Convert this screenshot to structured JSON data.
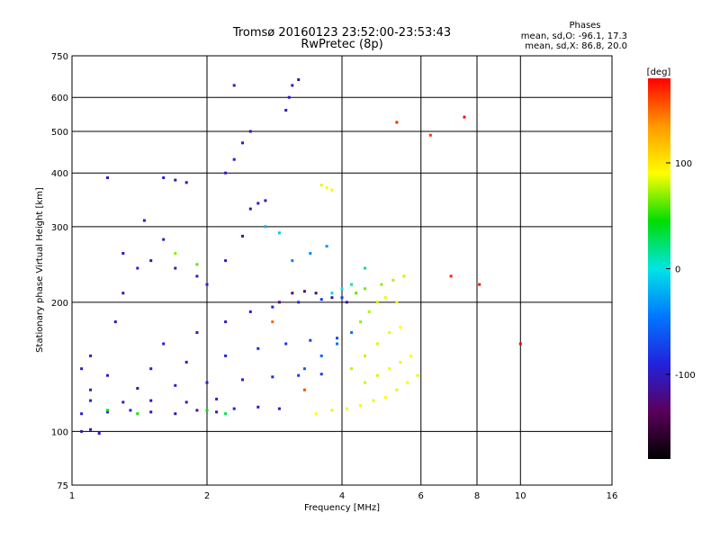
{
  "header": {
    "title_line1": "Tromsø 20160123 23:52:00-23:53:43",
    "title_line2": "RwPretec (8p)"
  },
  "stats": {
    "heading": "Phases",
    "line_o": "mean, sd,O: -96.1, 17.3",
    "line_x": "mean, sd,X:  86.8, 20.0"
  },
  "chart_data": {
    "type": "scatter",
    "title": "Tromsø 20160123 23:52:00-23:53:43",
    "subtitle": "RwPretec (8p)",
    "xlabel": "Frequency [MHz]",
    "ylabel": "Stationary phase Virtual Height [km]",
    "x_scale": "log",
    "y_scale": "log",
    "xlim": [
      1,
      16
    ],
    "ylim": [
      75,
      750
    ],
    "x_ticks": [
      1,
      2,
      4,
      6,
      8,
      10,
      16
    ],
    "y_ticks": [
      75,
      100,
      200,
      300,
      400,
      500,
      600,
      750
    ],
    "grid": true,
    "colorbar": {
      "label": "[deg]",
      "range": [
        -180,
        180
      ],
      "ticks": [
        100,
        0,
        -100
      ],
      "colormap": [
        "#000000",
        "#5a005a",
        "#2222dd",
        "#0077ff",
        "#00e5e5",
        "#00dd00",
        "#ffff00",
        "#ff9900",
        "#ff0000"
      ]
    },
    "series": [
      {
        "points": [
          [
            1.05,
            100,
            -105
          ],
          [
            1.1,
            101,
            -110
          ],
          [
            1.15,
            99,
            -100
          ],
          [
            1.05,
            110,
            -95
          ],
          [
            1.2,
            111,
            -105
          ],
          [
            1.35,
            112,
            -90
          ],
          [
            1.5,
            111,
            -100
          ],
          [
            1.7,
            110,
            -105
          ],
          [
            1.9,
            112,
            -110
          ],
          [
            2.1,
            111,
            -100
          ],
          [
            2.3,
            113,
            -95
          ],
          [
            2.6,
            114,
            -100
          ],
          [
            2.9,
            113,
            -105
          ],
          [
            1.1,
            118,
            -100
          ],
          [
            1.3,
            117,
            -95
          ],
          [
            1.5,
            118,
            -110
          ],
          [
            1.8,
            117,
            -100
          ],
          [
            2.1,
            119,
            -90
          ],
          [
            1.1,
            125,
            -100
          ],
          [
            1.4,
            126,
            -105
          ],
          [
            1.7,
            128,
            -95
          ],
          [
            2.0,
            130,
            -100
          ],
          [
            2.4,
            132,
            -90
          ],
          [
            2.8,
            134,
            -85
          ],
          [
            3.2,
            135,
            -80
          ],
          [
            3.6,
            136,
            -75
          ],
          [
            1.2,
            135,
            -100
          ],
          [
            1.5,
            140,
            -95
          ],
          [
            1.8,
            145,
            -100
          ],
          [
            2.2,
            150,
            -90
          ],
          [
            2.6,
            156,
            -85
          ],
          [
            3.0,
            160,
            -80
          ],
          [
            3.4,
            163,
            -75
          ],
          [
            3.9,
            165,
            -70
          ],
          [
            1.6,
            160,
            -100
          ],
          [
            1.9,
            170,
            -95
          ],
          [
            2.2,
            180,
            -100
          ],
          [
            2.5,
            190,
            -95
          ],
          [
            2.8,
            195,
            -90
          ],
          [
            3.2,
            200,
            -85
          ],
          [
            3.6,
            203,
            -80
          ],
          [
            4.0,
            205,
            -75
          ],
          [
            1.3,
            260,
            -100
          ],
          [
            1.5,
            250,
            -105
          ],
          [
            1.7,
            240,
            -95
          ],
          [
            1.9,
            230,
            -100
          ],
          [
            2.0,
            220,
            -95
          ],
          [
            2.2,
            250,
            -100
          ],
          [
            2.4,
            285,
            -105
          ],
          [
            2.5,
            330,
            -110
          ],
          [
            2.6,
            340,
            -100
          ],
          [
            2.7,
            345,
            -105
          ],
          [
            1.6,
            390,
            -95
          ],
          [
            1.7,
            385,
            -100
          ],
          [
            1.8,
            380,
            -105
          ],
          [
            2.2,
            400,
            -100
          ],
          [
            2.3,
            430,
            -95
          ],
          [
            2.4,
            470,
            -100
          ],
          [
            2.5,
            500,
            -105
          ],
          [
            2.3,
            640,
            -100
          ],
          [
            3.0,
            560,
            -95
          ],
          [
            3.1,
            640,
            -100
          ],
          [
            3.2,
            660,
            -105
          ],
          [
            3.05,
            600,
            -100
          ],
          [
            1.2,
            390,
            -100
          ],
          [
            1.05,
            140,
            -100
          ],
          [
            1.1,
            150,
            -95
          ],
          [
            1.3,
            210,
            -100
          ],
          [
            1.4,
            240,
            -95
          ],
          [
            1.25,
            180,
            -105
          ],
          [
            1.45,
            310,
            -100
          ],
          [
            1.6,
            280,
            -95
          ],
          [
            2.9,
            200,
            -130
          ],
          [
            3.1,
            210,
            -135
          ],
          [
            3.3,
            212,
            -120
          ],
          [
            3.5,
            210,
            -125
          ],
          [
            3.8,
            205,
            -115
          ],
          [
            4.1,
            200,
            -110
          ]
        ]
      },
      {
        "points": [
          [
            3.5,
            110,
            90
          ],
          [
            3.8,
            112,
            85
          ],
          [
            4.1,
            113,
            88
          ],
          [
            4.4,
            115,
            92
          ],
          [
            4.7,
            118,
            86
          ],
          [
            5.0,
            120,
            90
          ],
          [
            5.3,
            125,
            84
          ],
          [
            5.6,
            130,
            88
          ],
          [
            5.9,
            135,
            85
          ],
          [
            4.5,
            130,
            80
          ],
          [
            4.8,
            135,
            82
          ],
          [
            5.1,
            140,
            88
          ],
          [
            5.4,
            145,
            86
          ],
          [
            5.7,
            150,
            90
          ],
          [
            4.2,
            140,
            78
          ],
          [
            4.5,
            150,
            80
          ],
          [
            4.8,
            160,
            84
          ],
          [
            5.1,
            170,
            86
          ],
          [
            5.4,
            175,
            90
          ],
          [
            4.4,
            180,
            70
          ],
          [
            4.6,
            190,
            75
          ],
          [
            4.8,
            200,
            80
          ],
          [
            5.0,
            205,
            85
          ],
          [
            5.3,
            200,
            88
          ],
          [
            4.3,
            210,
            60
          ],
          [
            4.5,
            215,
            65
          ],
          [
            4.9,
            220,
            70
          ],
          [
            5.2,
            225,
            75
          ],
          [
            5.5,
            230,
            80
          ],
          [
            3.7,
            370,
            90
          ],
          [
            3.8,
            365,
            95
          ],
          [
            3.6,
            375,
            85
          ],
          [
            2.2,
            110,
            30
          ],
          [
            2.0,
            112,
            40
          ],
          [
            1.9,
            245,
            60
          ],
          [
            1.7,
            260,
            70
          ],
          [
            1.4,
            110,
            50
          ],
          [
            1.2,
            112,
            40
          ]
        ]
      },
      {
        "points": [
          [
            5.3,
            525,
            170
          ],
          [
            7.5,
            540,
            180
          ],
          [
            8.1,
            220,
            175
          ],
          [
            10.0,
            160,
            180
          ],
          [
            7.0,
            230,
            170
          ],
          [
            6.3,
            490,
            165
          ],
          [
            3.3,
            125,
            160
          ],
          [
            2.8,
            180,
            150
          ]
        ]
      },
      {
        "points": [
          [
            3.3,
            140,
            -60
          ],
          [
            3.6,
            150,
            -55
          ],
          [
            3.9,
            160,
            -50
          ],
          [
            4.2,
            170,
            -45
          ],
          [
            3.1,
            250,
            -40
          ],
          [
            3.4,
            260,
            -35
          ],
          [
            3.7,
            270,
            -30
          ],
          [
            2.7,
            300,
            -20
          ],
          [
            2.9,
            290,
            -10
          ],
          [
            3.8,
            210,
            -5
          ],
          [
            4.0,
            215,
            0
          ],
          [
            4.2,
            220,
            10
          ],
          [
            4.5,
            240,
            20
          ]
        ]
      }
    ]
  }
}
